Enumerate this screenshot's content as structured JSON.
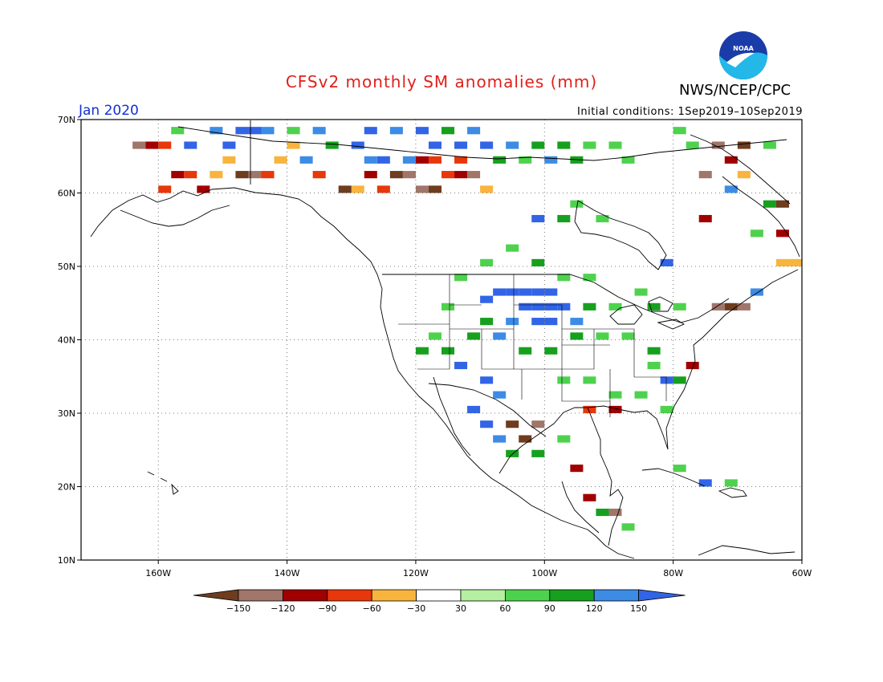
{
  "title": "CFSv2 monthly SM anomalies (mm)",
  "agency": "NWS/NCEP/CPC",
  "logo_text": "NOAA",
  "target_month": "Jan 2020",
  "initial_conditions": "Initial conditions: 1Sep2019–10Sep2019",
  "map": {
    "lon_range": [
      -172,
      -60
    ],
    "lat_range": [
      10,
      70
    ],
    "lat_ticks": [
      {
        "value": 10,
        "label": "10N"
      },
      {
        "value": 20,
        "label": "20N"
      },
      {
        "value": 30,
        "label": "30N"
      },
      {
        "value": 40,
        "label": "40N"
      },
      {
        "value": 50,
        "label": "50N"
      },
      {
        "value": 60,
        "label": "60N"
      },
      {
        "value": 70,
        "label": "70N"
      }
    ],
    "lon_ticks": [
      {
        "value": -160,
        "label": "160W"
      },
      {
        "value": -140,
        "label": "140W"
      },
      {
        "value": -120,
        "label": "120W"
      },
      {
        "value": -100,
        "label": "100W"
      },
      {
        "value": -80,
        "label": "80W"
      },
      {
        "value": -60,
        "label": "60W"
      }
    ],
    "grid": "dotted"
  },
  "colorbar": {
    "colors": [
      "#6e3c1e",
      "#a0766a",
      "#a00000",
      "#e8370a",
      "#f8b43c",
      "#ffffff",
      "#b4f0a0",
      "#4ed24e",
      "#16a01e",
      "#3c8ce6",
      "#3264e6"
    ],
    "labels": [
      "−150",
      "−120",
      "−90",
      "−60",
      "−30",
      "30",
      "60",
      "90",
      "120",
      "150"
    ]
  },
  "anomaly_cells": [
    {
      "lon": -108,
      "lat": 46,
      "v": 150
    },
    {
      "lon": -106,
      "lat": 46,
      "v": 150
    },
    {
      "lon": -104,
      "lat": 46,
      "v": 150
    },
    {
      "lon": -102,
      "lat": 46,
      "v": 150
    },
    {
      "lon": -100,
      "lat": 46,
      "v": 150
    },
    {
      "lon": -110,
      "lat": 45,
      "v": 150
    },
    {
      "lon": -104,
      "lat": 44,
      "v": 150
    },
    {
      "lon": -102,
      "lat": 44,
      "v": 150
    },
    {
      "lon": -100,
      "lat": 44,
      "v": 150
    },
    {
      "lon": -98,
      "lat": 44,
      "v": 150
    },
    {
      "lon": -102,
      "lat": 42,
      "v": 150
    },
    {
      "lon": -100,
      "lat": 42,
      "v": 150
    },
    {
      "lon": -106,
      "lat": 42,
      "v": 120
    },
    {
      "lon": -96,
      "lat": 42,
      "v": 120
    },
    {
      "lon": -94,
      "lat": 44,
      "v": 90
    },
    {
      "lon": -110,
      "lat": 42,
      "v": 90
    },
    {
      "lon": -112,
      "lat": 40,
      "v": 90
    },
    {
      "lon": -108,
      "lat": 40,
      "v": 120
    },
    {
      "lon": -104,
      "lat": 38,
      "v": 90
    },
    {
      "lon": -100,
      "lat": 38,
      "v": 90
    },
    {
      "lon": -96,
      "lat": 40,
      "v": 90
    },
    {
      "lon": -92,
      "lat": 40,
      "v": 60
    },
    {
      "lon": -88,
      "lat": 40,
      "v": 60
    },
    {
      "lon": -84,
      "lat": 38,
      "v": 90
    },
    {
      "lon": -114,
      "lat": 36,
      "v": 150
    },
    {
      "lon": -110,
      "lat": 34,
      "v": 150
    },
    {
      "lon": -108,
      "lat": 32,
      "v": 120
    },
    {
      "lon": -112,
      "lat": 30,
      "v": 150
    },
    {
      "lon": -110,
      "lat": 28,
      "v": 150
    },
    {
      "lon": -108,
      "lat": 26,
      "v": 120
    },
    {
      "lon": -106,
      "lat": 28,
      "v": -150
    },
    {
      "lon": -104,
      "lat": 26,
      "v": -150
    },
    {
      "lon": -102,
      "lat": 28,
      "v": -120
    },
    {
      "lon": -106,
      "lat": 24,
      "v": 90
    },
    {
      "lon": -102,
      "lat": 24,
      "v": 90
    },
    {
      "lon": -98,
      "lat": 26,
      "v": 60
    },
    {
      "lon": -116,
      "lat": 38,
      "v": 90
    },
    {
      "lon": -118,
      "lat": 40,
      "v": 60
    },
    {
      "lon": -120,
      "lat": 38,
      "v": 90
    },
    {
      "lon": -116,
      "lat": 44,
      "v": 60
    },
    {
      "lon": -114,
      "lat": 48,
      "v": 60
    },
    {
      "lon": -110,
      "lat": 50,
      "v": 60
    },
    {
      "lon": -106,
      "lat": 52,
      "v": 60
    },
    {
      "lon": -102,
      "lat": 50,
      "v": 90
    },
    {
      "lon": -98,
      "lat": 48,
      "v": 60
    },
    {
      "lon": -94,
      "lat": 48,
      "v": 60
    },
    {
      "lon": -98,
      "lat": 56,
      "v": 90
    },
    {
      "lon": -96,
      "lat": 58,
      "v": 60
    },
    {
      "lon": -92,
      "lat": 56,
      "v": 60
    },
    {
      "lon": -102,
      "lat": 56,
      "v": 150
    },
    {
      "lon": -84,
      "lat": 36,
      "v": 60
    },
    {
      "lon": -80,
      "lat": 34,
      "v": 90
    },
    {
      "lon": -82,
      "lat": 30,
      "v": 60
    },
    {
      "lon": -86,
      "lat": 32,
      "v": 60
    },
    {
      "lon": -90,
      "lat": 32,
      "v": 60
    },
    {
      "lon": -94,
      "lat": 34,
      "v": 60
    },
    {
      "lon": -98,
      "lat": 34,
      "v": 60
    },
    {
      "lon": -90,
      "lat": 30,
      "v": -90
    },
    {
      "lon": -94,
      "lat": 30,
      "v": -60
    },
    {
      "lon": -82,
      "lat": 34,
      "v": 150
    },
    {
      "lon": -78,
      "lat": 36,
      "v": -90
    },
    {
      "lon": -74,
      "lat": 44,
      "v": -120
    },
    {
      "lon": -72,
      "lat": 44,
      "v": -150
    },
    {
      "lon": -70,
      "lat": 44,
      "v": -120
    },
    {
      "lon": -68,
      "lat": 46,
      "v": 120
    },
    {
      "lon": -80,
      "lat": 44,
      "v": 60
    },
    {
      "lon": -84,
      "lat": 44,
      "v": 90
    },
    {
      "lon": -86,
      "lat": 46,
      "v": 60
    },
    {
      "lon": -90,
      "lat": 44,
      "v": 60
    },
    {
      "lon": -96,
      "lat": 22,
      "v": -90
    },
    {
      "lon": -94,
      "lat": 18,
      "v": -90
    },
    {
      "lon": -90,
      "lat": 16,
      "v": -120
    },
    {
      "lon": -92,
      "lat": 16,
      "v": 90
    },
    {
      "lon": -88,
      "lat": 14,
      "v": 60
    },
    {
      "lon": -80,
      "lat": 22,
      "v": 60
    },
    {
      "lon": -76,
      "lat": 20,
      "v": 150
    },
    {
      "lon": -72,
      "lat": 20,
      "v": 60
    },
    {
      "lon": -124,
      "lat": 62,
      "v": -150
    },
    {
      "lon": -122,
      "lat": 62,
      "v": -120
    },
    {
      "lon": -120,
      "lat": 60,
      "v": -120
    },
    {
      "lon": -118,
      "lat": 60,
      "v": -150
    },
    {
      "lon": -116,
      "lat": 62,
      "v": -60
    },
    {
      "lon": -126,
      "lat": 60,
      "v": -60
    },
    {
      "lon": -128,
      "lat": 62,
      "v": -90
    },
    {
      "lon": -130,
      "lat": 60,
      "v": -30
    },
    {
      "lon": -132,
      "lat": 60,
      "v": -150
    },
    {
      "lon": -114,
      "lat": 62,
      "v": -90
    },
    {
      "lon": -112,
      "lat": 62,
      "v": -120
    },
    {
      "lon": -110,
      "lat": 60,
      "v": -30
    },
    {
      "lon": -120,
      "lat": 64,
      "v": -90
    },
    {
      "lon": -118,
      "lat": 64,
      "v": -60
    },
    {
      "lon": -122,
      "lat": 64,
      "v": 120
    },
    {
      "lon": -126,
      "lat": 64,
      "v": 150
    },
    {
      "lon": -128,
      "lat": 64,
      "v": 120
    },
    {
      "lon": -114,
      "lat": 64,
      "v": -60
    },
    {
      "lon": -162,
      "lat": 66,
      "v": -90
    },
    {
      "lon": -160,
      "lat": 66,
      "v": -60
    },
    {
      "lon": -164,
      "lat": 66,
      "v": -120
    },
    {
      "lon": -158,
      "lat": 62,
      "v": -90
    },
    {
      "lon": -156,
      "lat": 62,
      "v": -60
    },
    {
      "lon": -154,
      "lat": 60,
      "v": -90
    },
    {
      "lon": -160,
      "lat": 60,
      "v": -60
    },
    {
      "lon": -152,
      "lat": 62,
      "v": -30
    },
    {
      "lon": -150,
      "lat": 64,
      "v": -30
    },
    {
      "lon": -148,
      "lat": 62,
      "v": -150
    },
    {
      "lon": -146,
      "lat": 62,
      "v": -120
    },
    {
      "lon": -144,
      "lat": 62,
      "v": -60
    },
    {
      "lon": -142,
      "lat": 64,
      "v": -30
    },
    {
      "lon": -156,
      "lat": 66,
      "v": 150
    },
    {
      "lon": -150,
      "lat": 66,
      "v": 150
    },
    {
      "lon": -148,
      "lat": 68,
      "v": 150
    },
    {
      "lon": -146,
      "lat": 68,
      "v": 150
    },
    {
      "lon": -144,
      "lat": 68,
      "v": 120
    },
    {
      "lon": -140,
      "lat": 66,
      "v": -30
    },
    {
      "lon": -138,
      "lat": 64,
      "v": 120
    },
    {
      "lon": -136,
      "lat": 62,
      "v": -60
    },
    {
      "lon": -130,
      "lat": 66,
      "v": 150
    },
    {
      "lon": -128,
      "lat": 68,
      "v": 150
    },
    {
      "lon": -124,
      "lat": 68,
      "v": 120
    },
    {
      "lon": -120,
      "lat": 68,
      "v": 150
    },
    {
      "lon": -118,
      "lat": 66,
      "v": 150
    },
    {
      "lon": -114,
      "lat": 66,
      "v": 150
    },
    {
      "lon": -110,
      "lat": 66,
      "v": 150
    },
    {
      "lon": -106,
      "lat": 66,
      "v": 120
    },
    {
      "lon": -102,
      "lat": 66,
      "v": 90
    },
    {
      "lon": -98,
      "lat": 66,
      "v": 90
    },
    {
      "lon": -94,
      "lat": 66,
      "v": 60
    },
    {
      "lon": -90,
      "lat": 66,
      "v": 60
    },
    {
      "lon": -88,
      "lat": 64,
      "v": 60
    },
    {
      "lon": -96,
      "lat": 64,
      "v": 90
    },
    {
      "lon": -100,
      "lat": 64,
      "v": 120
    },
    {
      "lon": -104,
      "lat": 64,
      "v": 60
    },
    {
      "lon": -108,
      "lat": 64,
      "v": 90
    },
    {
      "lon": -112,
      "lat": 68,
      "v": 120
    },
    {
      "lon": -116,
      "lat": 68,
      "v": 90
    },
    {
      "lon": -134,
      "lat": 66,
      "v": 90
    },
    {
      "lon": -136,
      "lat": 68,
      "v": 120
    },
    {
      "lon": -140,
      "lat": 68,
      "v": 60
    },
    {
      "lon": -152,
      "lat": 68,
      "v": 120
    },
    {
      "lon": -158,
      "lat": 68,
      "v": 60
    },
    {
      "lon": -74,
      "lat": 66,
      "v": -120
    },
    {
      "lon": -72,
      "lat": 64,
      "v": -90
    },
    {
      "lon": -70,
      "lat": 66,
      "v": -150
    },
    {
      "lon": -76,
      "lat": 62,
      "v": -120
    },
    {
      "lon": -72,
      "lat": 60,
      "v": 120
    },
    {
      "lon": -70,
      "lat": 62,
      "v": -30
    },
    {
      "lon": -66,
      "lat": 58,
      "v": 90
    },
    {
      "lon": -64,
      "lat": 58,
      "v": -150
    },
    {
      "lon": -62,
      "lat": 50,
      "v": -30
    },
    {
      "lon": -64,
      "lat": 50,
      "v": -30
    },
    {
      "lon": -78,
      "lat": 66,
      "v": 60
    },
    {
      "lon": -80,
      "lat": 68,
      "v": 60
    },
    {
      "lon": -66,
      "lat": 66,
      "v": 60
    },
    {
      "lon": -64,
      "lat": 54,
      "v": -90
    },
    {
      "lon": -68,
      "lat": 54,
      "v": 60
    },
    {
      "lon": -82,
      "lat": 50,
      "v": 150
    },
    {
      "lon": -76,
      "lat": 56,
      "v": -90
    }
  ]
}
